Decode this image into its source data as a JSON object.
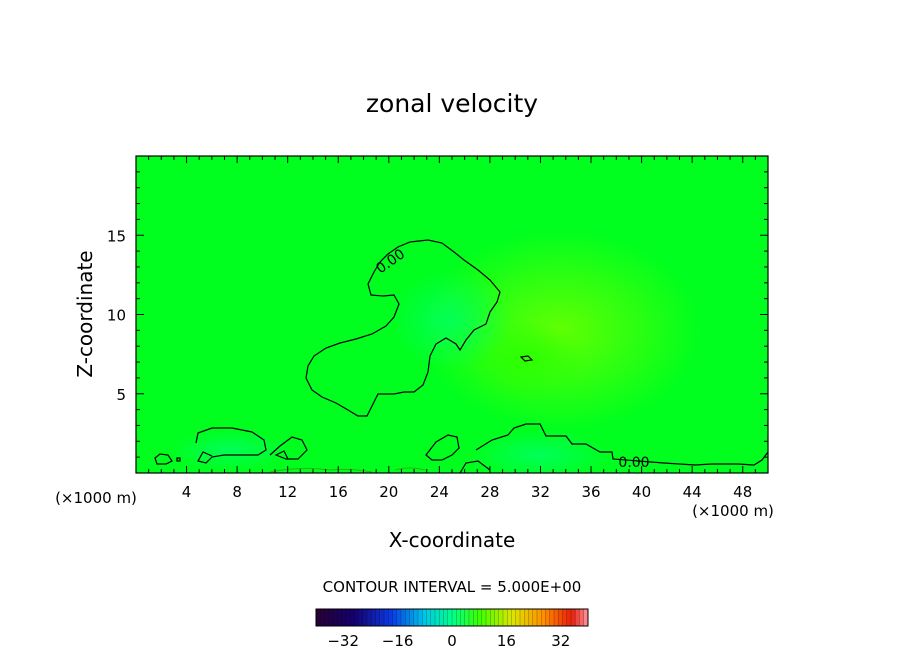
{
  "chart_data": {
    "type": "contour",
    "title": "zonal velocity",
    "xlabel": "X-coordinate",
    "ylabel": "Z-coordinate",
    "x_unit": "(×1000 m)",
    "x_unit_right": "(×1000 m)",
    "xlim": [
      0,
      50
    ],
    "ylim": [
      0,
      20
    ],
    "x_ticks": [
      4,
      8,
      12,
      16,
      20,
      24,
      28,
      32,
      36,
      40,
      44,
      48
    ],
    "y_ticks": [
      5,
      10,
      15
    ],
    "contour_interval_text": "CONTOUR INTERVAL = 5.000E+00",
    "contour_labels": [
      {
        "text": "0.00",
        "x": 21,
        "z": 13.2
      },
      {
        "text": "0.00",
        "x": 39.1,
        "z": 0.8
      }
    ],
    "colorbar": {
      "range": [
        -40,
        40
      ],
      "tick_values": [
        -32,
        -16,
        0,
        16,
        32
      ],
      "tick_labels": [
        "−32",
        "−16",
        "0",
        "16",
        "32"
      ]
    },
    "field_color": "#00ff1e",
    "contour_color": "#000000"
  }
}
